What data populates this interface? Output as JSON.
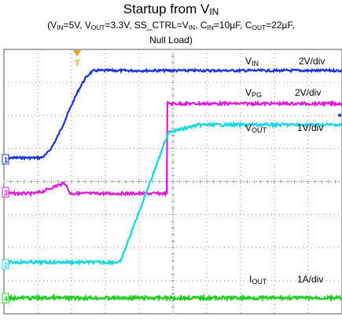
{
  "title": {
    "main": "Startup from V",
    "main_sub": "IN"
  },
  "subtitle": {
    "line1_parts": [
      {
        "t": "(V"
      },
      {
        "s": "IN"
      },
      {
        "t": "=5V, V"
      },
      {
        "s": "OUT"
      },
      {
        "t": "=3.3V, SS_CTRL=V"
      },
      {
        "s": "IN"
      },
      {
        "t": ", C"
      },
      {
        "s": "IN"
      },
      {
        "t": "=10µF, C"
      },
      {
        "s": "OUT"
      },
      {
        "t": "=22µF,"
      }
    ],
    "line2": "Null Load)"
  },
  "colors": {
    "vin": "#1a33d9",
    "vpg": "#e01ad6",
    "vout": "#1fd6de",
    "iout": "#22cc22",
    "grid": "#9a9a9a",
    "frame": "#555555"
  },
  "chart_data": {
    "type": "line",
    "grid": {
      "divisions_x": 10,
      "divisions_y": 8
    },
    "series": [
      {
        "name": "VIN",
        "label_main": "V",
        "label_sub": "IN",
        "scale": "2V/div",
        "marker": "1",
        "color": "#1a33d9"
      },
      {
        "name": "VPG",
        "label_main": "V",
        "label_sub": "PG",
        "scale": "2V/div",
        "marker": "3",
        "color": "#e01ad6"
      },
      {
        "name": "VOUT",
        "label_main": "V",
        "label_sub": "OUT",
        "scale": "1V/div",
        "marker": "2",
        "color": "#1fd6de"
      },
      {
        "name": "IOUT",
        "label_main": "I",
        "label_sub": "OUT",
        "scale": "1A/div",
        "marker": "4",
        "color": "#22cc22"
      }
    ],
    "trigger_marker": "T"
  }
}
